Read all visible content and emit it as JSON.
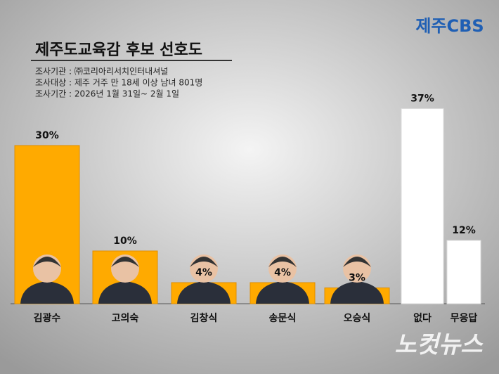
{
  "chart_data": {
    "type": "bar",
    "title": "제주도교육감 후보 선호도",
    "notes": [
      "조사기관 : ㈜코리아리서치인터내셔널",
      "조사대상 : 제주 거주 만 18세 이상 남녀 801명",
      "조사기간 : 2026년 1월 31일~ 2월 1일"
    ],
    "logo": "제주CBS",
    "watermark": "노컷뉴스",
    "categories": [
      "김광수",
      "고의숙",
      "김창식",
      "송문식",
      "오승식",
      "없다",
      "무응답"
    ],
    "values": [
      30,
      10,
      4,
      4,
      3,
      37,
      12
    ],
    "value_labels": [
      "30%",
      "10%",
      "4%",
      "4%",
      "3%",
      "37%",
      "12%"
    ],
    "colors": [
      "#ffaa00",
      "#ffaa00",
      "#ffaa00",
      "#ffaa00",
      "#ffaa00",
      "#ffffff",
      "#ffffff"
    ],
    "ylim": [
      0,
      40
    ]
  }
}
